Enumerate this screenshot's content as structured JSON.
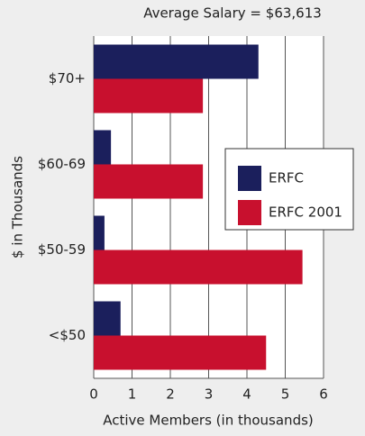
{
  "chart_data": {
    "type": "hbar",
    "title": "Average Salary = $63,613",
    "xlabel": "Active Members (in thousands)",
    "ylabel": "$ in Thousands",
    "categories": [
      "$70+",
      "$60-69",
      "$50-59",
      "<$50"
    ],
    "series": [
      {
        "name": "ERFC",
        "color": "#1b1f5c",
        "values": [
          4.3,
          0.45,
          0.28,
          0.7
        ]
      },
      {
        "name": "ERFC 2001",
        "color": "#c8102e",
        "values": [
          2.85,
          2.85,
          5.45,
          4.5
        ]
      }
    ],
    "xlim": [
      0,
      6
    ],
    "xticks": [
      0,
      1,
      2,
      3,
      4,
      5,
      6
    ],
    "grid": true,
    "legend": "right"
  }
}
